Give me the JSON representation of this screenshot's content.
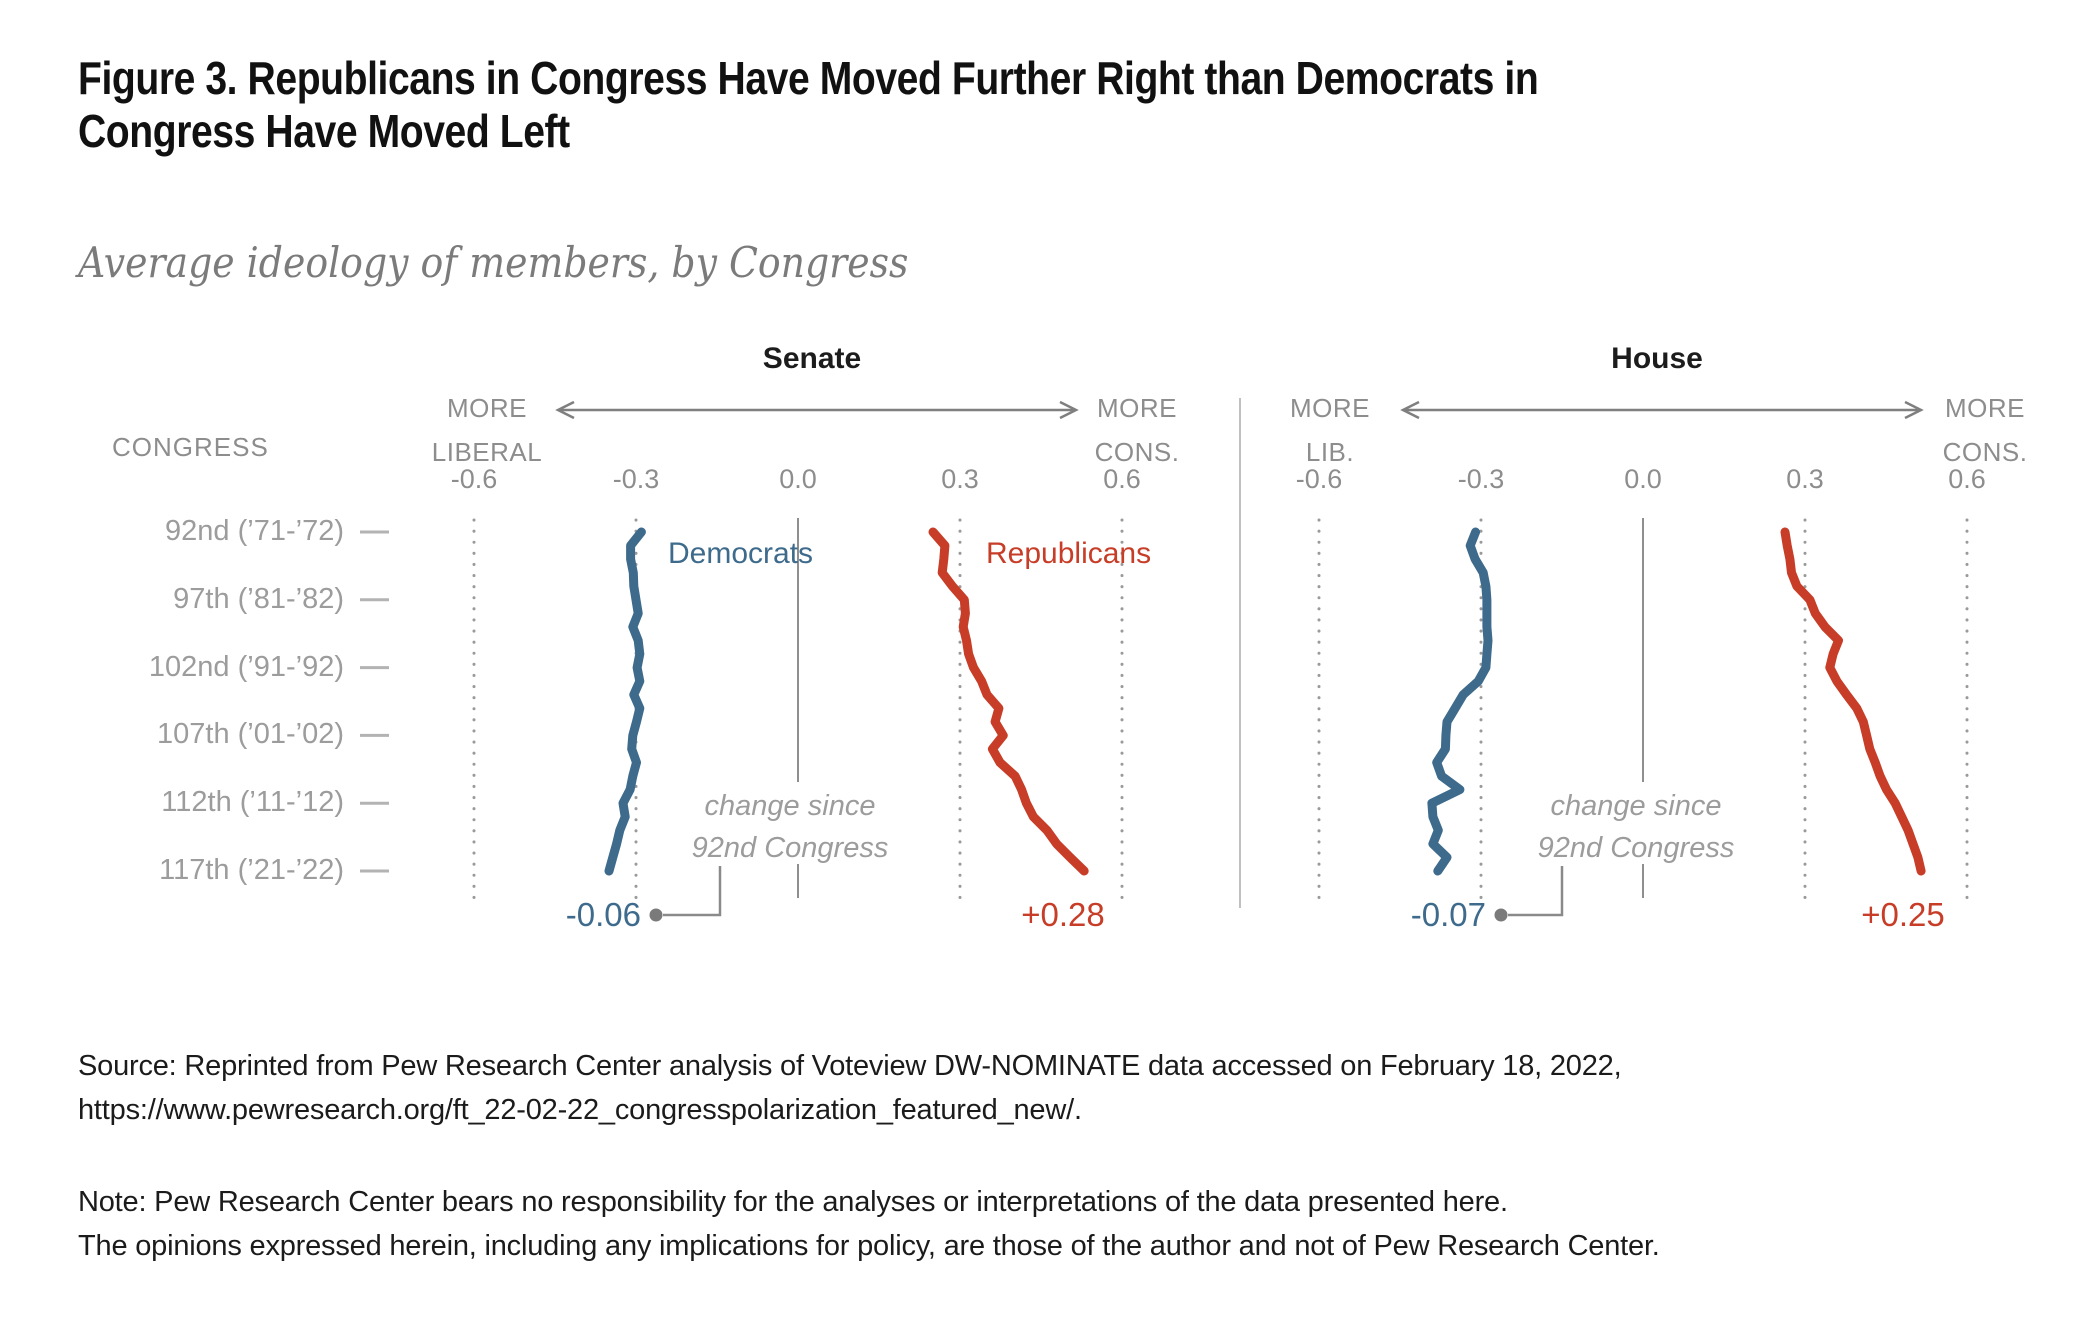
{
  "figure": {
    "title_line1": "Figure 3. Republicans in Congress Have Moved Further Right than Democrats in",
    "title_line2": "Congress Have Moved Left",
    "subtitle": "Average ideology of members, by Congress",
    "source_line1": "Source: Reprinted from Pew Research Center analysis of Voteview DW-NOMINATE data accessed on February 18, 2022,",
    "source_line2": "https://www.pewresearch.org/ft_22-02-22_congresspolarization_featured_new/.",
    "note_line1": "Note: Pew Research Center bears no responsibility for the analyses or interpretations of the data presented here.",
    "note_line2": "The opinions expressed herein, including any implications for policy, are those of the author and not of Pew Research Center."
  },
  "colors": {
    "democrat_blue": "#3E6B8C",
    "republican_red": "#C73D27",
    "axis_gray": "#8D8D8D",
    "row_label_gray": "#9C9C9C",
    "gridline_gray": "#9A9A9A",
    "leader_gray": "#8A8A8A",
    "divider_gray": "#C0C0C0"
  },
  "axis": {
    "congress_label": "CONGRESS",
    "row_labels": [
      "92nd (’71-’72)",
      "97th (’81-’82)",
      "102nd (’91-’92)",
      "107th (’01-’02)",
      "112th (’11-’12)",
      "117th (’21-’22)"
    ],
    "tick_labels": [
      "-0.6",
      "-0.3",
      "0.0",
      "0.3",
      "0.6"
    ],
    "tick_values": [
      -0.6,
      -0.3,
      0.0,
      0.3,
      0.6
    ]
  },
  "chart_data": [
    {
      "type": "line",
      "title": "Senate",
      "left_label_line1": "MORE",
      "left_label_line2": "LIBERAL",
      "right_label_line1": "MORE",
      "right_label_line2": "CONS.",
      "xlim": [
        -0.75,
        0.75
      ],
      "congresses": [
        92,
        93,
        94,
        95,
        96,
        97,
        98,
        99,
        100,
        101,
        102,
        103,
        104,
        105,
        106,
        107,
        108,
        109,
        110,
        111,
        112,
        113,
        114,
        115,
        116,
        117
      ],
      "series": [
        {
          "name": "Democrats",
          "color": "#3E6B8C",
          "values": [
            -0.29,
            -0.31,
            -0.31,
            -0.305,
            -0.304,
            -0.3,
            -0.296,
            -0.306,
            -0.296,
            -0.293,
            -0.298,
            -0.293,
            -0.304,
            -0.293,
            -0.299,
            -0.306,
            -0.308,
            -0.299,
            -0.306,
            -0.311,
            -0.324,
            -0.32,
            -0.33,
            -0.336,
            -0.343,
            -0.35
          ]
        },
        {
          "name": "Republicans",
          "color": "#C73D27",
          "values": [
            0.25,
            0.272,
            0.27,
            0.267,
            0.286,
            0.308,
            0.31,
            0.306,
            0.312,
            0.316,
            0.325,
            0.34,
            0.35,
            0.372,
            0.365,
            0.38,
            0.36,
            0.374,
            0.402,
            0.414,
            0.423,
            0.436,
            0.461,
            0.479,
            0.504,
            0.53
          ]
        }
      ],
      "annotations": {
        "change_line1": "change since",
        "change_line2": "92nd Congress",
        "dem_change": "-0.06",
        "rep_change": "+0.28"
      }
    },
    {
      "type": "line",
      "title": "House",
      "left_label_line1": "MORE",
      "left_label_line2": "LIB.",
      "right_label_line1": "MORE",
      "right_label_line2": "CONS.",
      "xlim": [
        -0.75,
        0.75
      ],
      "congresses": [
        92,
        93,
        94,
        95,
        96,
        97,
        98,
        99,
        100,
        101,
        102,
        103,
        104,
        105,
        106,
        107,
        108,
        109,
        110,
        111,
        112,
        113,
        114,
        115,
        116,
        117
      ],
      "series": [
        {
          "name": "Democrats",
          "color": "#3E6B8C",
          "values": [
            -0.31,
            -0.32,
            -0.311,
            -0.296,
            -0.291,
            -0.289,
            -0.289,
            -0.289,
            -0.287,
            -0.289,
            -0.291,
            -0.305,
            -0.333,
            -0.348,
            -0.363,
            -0.365,
            -0.366,
            -0.382,
            -0.373,
            -0.339,
            -0.391,
            -0.389,
            -0.379,
            -0.389,
            -0.363,
            -0.38
          ]
        },
        {
          "name": "Republicans",
          "color": "#C73D27",
          "values": [
            0.263,
            0.267,
            0.272,
            0.275,
            0.285,
            0.309,
            0.319,
            0.337,
            0.362,
            0.352,
            0.346,
            0.359,
            0.377,
            0.396,
            0.408,
            0.414,
            0.42,
            0.43,
            0.439,
            0.451,
            0.467,
            0.479,
            0.491,
            0.5,
            0.509,
            0.515
          ]
        }
      ],
      "annotations": {
        "change_line1": "change since",
        "change_line2": "92nd Congress",
        "dem_change": "-0.07",
        "rep_change": "+0.25"
      }
    }
  ]
}
